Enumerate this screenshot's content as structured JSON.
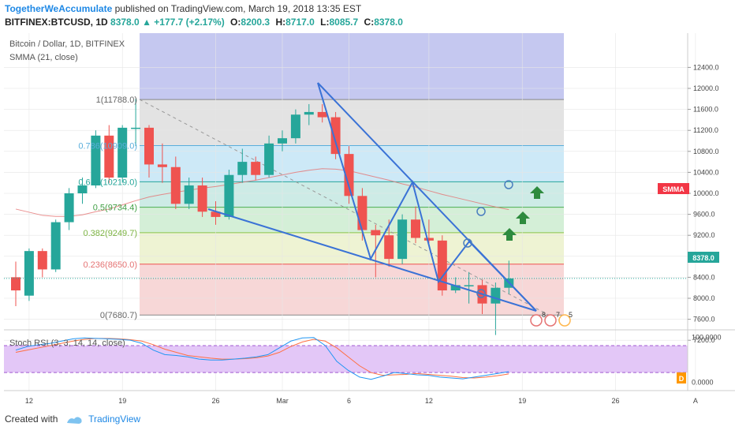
{
  "header": {
    "author": "TogetherWeAccumulate",
    "published": "published on TradingView.com, March 19, 2018 13:35 EST",
    "symbol": "BITFINEX:BTCUSD, 1D",
    "last": "8378.0",
    "change": "+177.7 (+2.17%)",
    "open_label": "O:",
    "open": "8200.3",
    "high_label": "H:",
    "high": "8717.0",
    "low_label": "L:",
    "low": "8085.7",
    "close_label": "C:",
    "close": "8378.0"
  },
  "legend": {
    "title": "Bitcoin / Dollar, 1D, BITFINEX",
    "indicator": "SMMA (21, close)",
    "stoch": "Stoch RSI (3, 3, 14, 14, close)"
  },
  "badges": {
    "smma": "SMMA",
    "price": "8378.0",
    "dividend": "D",
    "events": [
      "8",
      "7",
      "5"
    ]
  },
  "footer": {
    "created": "Created with",
    "brand": "TradingView"
  },
  "colors": {
    "up": "#26a69a",
    "down": "#ef5350",
    "pattern": "#3a72d6",
    "smma": "#e57373",
    "stoch_k": "#2196f3",
    "stoch_d": "#ff7043"
  },
  "chart_data": {
    "type": "candlestick",
    "y_ticks": [
      7200,
      7600,
      8000,
      8400,
      8800,
      9200,
      9600,
      10000,
      10400,
      10800,
      11200,
      11600,
      12000,
      12400
    ],
    "y_tick_labels": [
      "7200.0",
      "7600.0",
      "8000.0",
      "8400.0",
      "8800.0",
      "9200.0",
      "9600.0",
      "10000.0",
      "10400.0",
      "10800.0",
      "11200.0",
      "11600.0",
      "12000.0",
      "12400.0"
    ],
    "ylim": [
      7000,
      12700
    ],
    "x_labels": [
      {
        "day": 1,
        "label": "12"
      },
      {
        "day": 8,
        "label": "19"
      },
      {
        "day": 15,
        "label": "26"
      },
      {
        "day": 20,
        "label": "Mar"
      },
      {
        "day": 25,
        "label": "6"
      },
      {
        "day": 31,
        "label": "12"
      },
      {
        "day": 38,
        "label": "19"
      },
      {
        "day": 45,
        "label": "26"
      },
      {
        "day": 51,
        "label": "A"
      }
    ],
    "candles": [
      {
        "o": 8400,
        "h": 8700,
        "l": 7850,
        "c": 8150
      },
      {
        "o": 8050,
        "h": 8950,
        "l": 7950,
        "c": 8900
      },
      {
        "o": 8900,
        "h": 8950,
        "l": 8400,
        "c": 8550
      },
      {
        "o": 8550,
        "h": 9500,
        "l": 8500,
        "c": 9450
      },
      {
        "o": 9450,
        "h": 10100,
        "l": 9300,
        "c": 10000
      },
      {
        "o": 10000,
        "h": 10300,
        "l": 9800,
        "c": 10150
      },
      {
        "o": 10150,
        "h": 11200,
        "l": 10100,
        "c": 11100
      },
      {
        "o": 11100,
        "h": 11300,
        "l": 10200,
        "c": 10300
      },
      {
        "o": 10300,
        "h": 11300,
        "l": 10200,
        "c": 11250
      },
      {
        "o": 11250,
        "h": 11800,
        "l": 10900,
        "c": 11250
      },
      {
        "o": 11250,
        "h": 11300,
        "l": 10300,
        "c": 10550
      },
      {
        "o": 10550,
        "h": 10950,
        "l": 10200,
        "c": 10500
      },
      {
        "o": 10500,
        "h": 10700,
        "l": 9700,
        "c": 9800
      },
      {
        "o": 9800,
        "h": 10300,
        "l": 9700,
        "c": 10150
      },
      {
        "o": 10150,
        "h": 10300,
        "l": 9550,
        "c": 9650
      },
      {
        "o": 9650,
        "h": 9850,
        "l": 9400,
        "c": 9550
      },
      {
        "o": 9550,
        "h": 10450,
        "l": 9500,
        "c": 10350
      },
      {
        "o": 10350,
        "h": 10850,
        "l": 10200,
        "c": 10600
      },
      {
        "o": 10600,
        "h": 10700,
        "l": 10250,
        "c": 10350
      },
      {
        "o": 10350,
        "h": 11100,
        "l": 10300,
        "c": 10950
      },
      {
        "o": 10950,
        "h": 11200,
        "l": 10800,
        "c": 11050
      },
      {
        "o": 11050,
        "h": 11600,
        "l": 10950,
        "c": 11500
      },
      {
        "o": 11500,
        "h": 11700,
        "l": 11300,
        "c": 11550
      },
      {
        "o": 11550,
        "h": 11700,
        "l": 11350,
        "c": 11450
      },
      {
        "o": 11450,
        "h": 11550,
        "l": 10650,
        "c": 10750
      },
      {
        "o": 10750,
        "h": 10900,
        "l": 9800,
        "c": 9950
      },
      {
        "o": 9950,
        "h": 10100,
        "l": 9100,
        "c": 9300
      },
      {
        "o": 9300,
        "h": 9400,
        "l": 8400,
        "c": 9200
      },
      {
        "o": 9200,
        "h": 9500,
        "l": 8600,
        "c": 8750
      },
      {
        "o": 8750,
        "h": 9600,
        "l": 8650,
        "c": 9500
      },
      {
        "o": 9500,
        "h": 9750,
        "l": 9050,
        "c": 9150
      },
      {
        "o": 9150,
        "h": 9500,
        "l": 9050,
        "c": 9100
      },
      {
        "o": 9100,
        "h": 9200,
        "l": 8050,
        "c": 8150
      },
      {
        "o": 8150,
        "h": 8400,
        "l": 8100,
        "c": 8250
      },
      {
        "o": 8250,
        "h": 8500,
        "l": 7900,
        "c": 8250
      },
      {
        "o": 8250,
        "h": 8350,
        "l": 7700,
        "c": 7900
      },
      {
        "o": 7900,
        "h": 8300,
        "l": 7300,
        "c": 8200
      },
      {
        "o": 8200,
        "h": 8717,
        "l": 8085,
        "c": 8378
      }
    ],
    "smma": [
      9700,
      9640,
      9580,
      9560,
      9560,
      9590,
      9650,
      9700,
      9780,
      9860,
      9930,
      9980,
      10020,
      10060,
      10100,
      10130,
      10170,
      10210,
      10250,
      10300,
      10350,
      10400,
      10440,
      10470,
      10460,
      10430,
      10370,
      10310,
      10250,
      10180,
      10120,
      10050,
      9980,
      9920,
      9860,
      9800,
      9740,
      9690
    ],
    "fib_levels": [
      {
        "ratio": "1",
        "price": 11788.0,
        "label": "1(11788.0)"
      },
      {
        "ratio": "0.786",
        "price": 10909.0,
        "label": "0.786(10909.0)"
      },
      {
        "ratio": "0.618",
        "price": 10219.0,
        "label": "0.618(10219.0)"
      },
      {
        "ratio": "0.5",
        "price": 9734.4,
        "label": "0.5(9734.4)"
      },
      {
        "ratio": "0.382",
        "price": 9249.7,
        "label": "0.382(9249.7)"
      },
      {
        "ratio": "0.236",
        "price": 8650.0,
        "label": "0.236(8650.0)"
      },
      {
        "ratio": "0",
        "price": 7680.7,
        "label": "0(7680.7)"
      }
    ],
    "stoch_rsi": {
      "ticks": [
        "100.0000",
        "0.0000"
      ],
      "ylim": [
        -20,
        115
      ],
      "upper": 80,
      "lower": 20,
      "k": [
        70,
        78,
        82,
        85,
        90,
        95,
        97,
        96,
        95,
        94,
        92,
        85,
        70,
        60,
        58,
        55,
        50,
        48,
        48,
        50,
        52,
        55,
        60,
        75,
        90,
        97,
        98,
        80,
        45,
        25,
        10,
        5,
        12,
        20,
        18,
        15,
        14,
        10,
        8,
        6,
        10,
        14,
        18,
        22
      ],
      "d": [
        65,
        70,
        75,
        80,
        85,
        90,
        94,
        96,
        96,
        95,
        93,
        90,
        82,
        72,
        65,
        58,
        55,
        52,
        50,
        50,
        51,
        53,
        57,
        65,
        78,
        88,
        94,
        90,
        75,
        55,
        35,
        20,
        14,
        15,
        16,
        18,
        16,
        14,
        12,
        9,
        8,
        10,
        13,
        17
      ]
    }
  }
}
